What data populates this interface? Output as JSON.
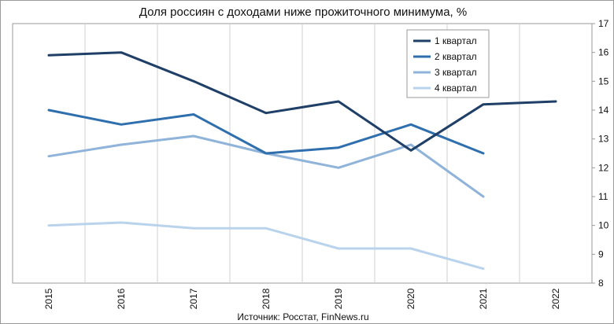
{
  "chart_data": {
    "type": "line",
    "title": "Доля россиян с доходами ниже прожиточного минимума, %",
    "source": "Источник: Росстат, FinNews.ru",
    "xlabel": "",
    "ylabel": "",
    "categories": [
      "2015",
      "2016",
      "2017",
      "2018",
      "2019",
      "2020",
      "2021",
      "2022"
    ],
    "ylim": [
      8,
      17
    ],
    "yticks": [
      8,
      9,
      10,
      11,
      12,
      13,
      14,
      15,
      16,
      17
    ],
    "y_axis_side": "right",
    "grid": "vertical",
    "legend_position": "top-right",
    "series": [
      {
        "name": "1 квартал",
        "color": "#1f3f66",
        "values": [
          15.9,
          16.0,
          15.0,
          13.9,
          14.3,
          12.6,
          14.2,
          14.3
        ]
      },
      {
        "name": "2 квартал",
        "color": "#2f6fad",
        "values": [
          14.0,
          13.5,
          13.85,
          12.5,
          12.7,
          13.5,
          12.5,
          null
        ]
      },
      {
        "name": "3 квартал",
        "color": "#8fb3d9",
        "values": [
          12.4,
          12.8,
          13.1,
          12.5,
          12.0,
          12.8,
          11.0,
          null
        ]
      },
      {
        "name": "4 квартал",
        "color": "#b9d3ec",
        "values": [
          10.0,
          10.1,
          9.9,
          9.9,
          9.2,
          9.2,
          8.5,
          null
        ]
      }
    ]
  }
}
